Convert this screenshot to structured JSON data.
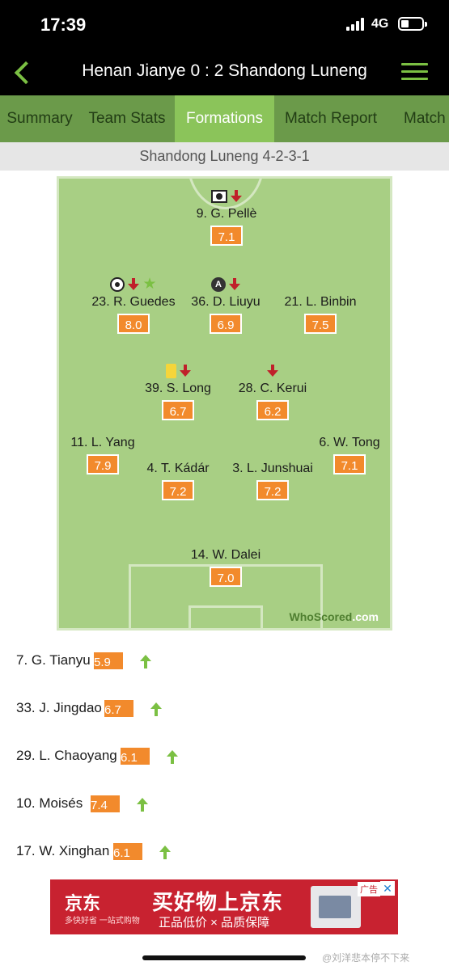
{
  "status": {
    "time": "17:39",
    "network": "4G"
  },
  "header": {
    "title": "Henan Jianye 0 : 2 Shandong Luneng"
  },
  "tabs": [
    {
      "label": "Summary",
      "active": false
    },
    {
      "label": "Team Stats",
      "active": false
    },
    {
      "label": "Formations",
      "active": true
    },
    {
      "label": "Match Report",
      "active": false
    },
    {
      "label": "Match S",
      "active": false
    }
  ],
  "formation_label": "Shandong Luneng 4-2-3-1",
  "players": [
    {
      "name": "9. G. Pellè",
      "rating": "7.1",
      "icons": [
        "goal-icon",
        "subbed-off-icon"
      ]
    },
    {
      "name": "23. R. Guedes",
      "rating": "8.0",
      "icons": [
        "goal-icon",
        "subbed-off-icon",
        "man-of-the-match-star-icon"
      ]
    },
    {
      "name": "36. D. Liuyu",
      "rating": "6.9",
      "icons": [
        "assist-icon",
        "subbed-off-icon"
      ]
    },
    {
      "name": "21. L. Binbin",
      "rating": "7.5",
      "icons": []
    },
    {
      "name": "39. S. Long",
      "rating": "6.7",
      "icons": [
        "yellow-card-icon",
        "subbed-off-icon"
      ]
    },
    {
      "name": "28. C. Kerui",
      "rating": "6.2",
      "icons": [
        "subbed-off-icon"
      ]
    },
    {
      "name": "11. L. Yang",
      "rating": "7.9",
      "icons": []
    },
    {
      "name": "4. T. Kádár",
      "rating": "7.2",
      "icons": []
    },
    {
      "name": "3. L. Junshuai",
      "rating": "7.2",
      "icons": []
    },
    {
      "name": "6. W. Tong",
      "rating": "7.1",
      "icons": []
    },
    {
      "name": "14. W. Dalei",
      "rating": "7.0",
      "icons": []
    }
  ],
  "substitutes": [
    {
      "name": "7. G. Tianyu",
      "rating": "5.9"
    },
    {
      "name": "33. J. Jingdao",
      "rating": "6.7"
    },
    {
      "name": "29. L. Chaoyang",
      "rating": "6.1"
    },
    {
      "name": "10. Moisés",
      "rating": "7.4"
    },
    {
      "name": "17. W. Xinghan",
      "rating": "6.1"
    }
  ],
  "watermark": {
    "part1": "WhoScored",
    "part2": ".com"
  },
  "ad": {
    "brand": "京东",
    "brand_sub": "多快好省 一站式购物",
    "headline": "买好物上京东",
    "tagline": "正品低价 × 品质保障",
    "label": "广告",
    "close": "✕"
  },
  "footer_watermark": "@刘洋悲本停不下来",
  "colors": {
    "header_bg": "#000000",
    "tab_bg": "#6b9a4a",
    "tab_active": "#8bc45a",
    "accent": "#7bc043",
    "rating_bg": "#f28a2c",
    "pitch": "#a8cf84",
    "sub_off": "#c0202a"
  }
}
